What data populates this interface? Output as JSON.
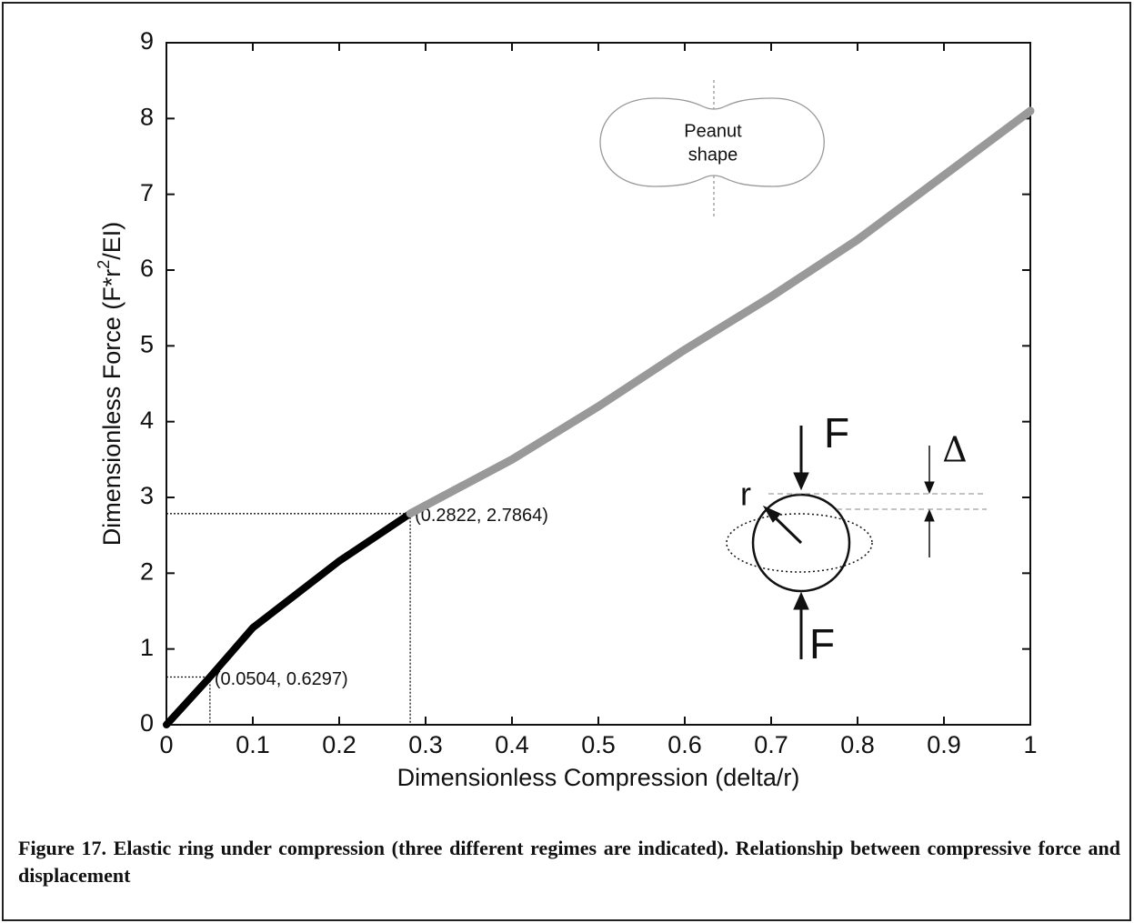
{
  "chart_data": {
    "type": "line",
    "xlabel": "Dimensionless Compression (delta/r)",
    "ylabel": {
      "before": "Dimensionless Force (F*r",
      "sup": "2",
      "after": "/EI)"
    },
    "xlim": [
      0,
      1
    ],
    "ylim": [
      0,
      9
    ],
    "xticks": [
      0,
      0.1,
      0.2,
      0.3,
      0.4,
      0.5,
      0.6,
      0.7,
      0.8,
      0.9,
      1
    ],
    "yticks": [
      0,
      1,
      2,
      3,
      4,
      5,
      6,
      7,
      8,
      9
    ],
    "series": [
      {
        "color": "#000000",
        "x": [
          0,
          0.0504,
          0.1,
          0.15,
          0.2,
          0.2822
        ],
        "values": [
          0,
          0.6297,
          1.28,
          1.72,
          2.16,
          2.7864
        ]
      },
      {
        "color": "#999999",
        "x": [
          0.2822,
          0.4,
          0.5,
          0.6,
          0.7,
          0.8,
          0.9,
          1
        ],
        "values": [
          2.7864,
          3.5,
          4.2,
          4.95,
          5.65,
          6.4,
          7.25,
          8.1
        ]
      }
    ],
    "annotations": [
      {
        "x": 0.0504,
        "y": 0.6297,
        "label": "(0.0504, 0.6297)"
      },
      {
        "x": 0.2822,
        "y": 2.7864,
        "label": "(0.2822, 2.7864)"
      }
    ],
    "peanut_label": [
      "Peanut",
      "shape"
    ],
    "force_labels": [
      "F",
      "F"
    ],
    "radius_label": "r",
    "delta_label": "Δ",
    "caption": "Figure 17. Elastic ring under compression (three different regimes are indicated).  Relationship between compressive force and displacement"
  }
}
